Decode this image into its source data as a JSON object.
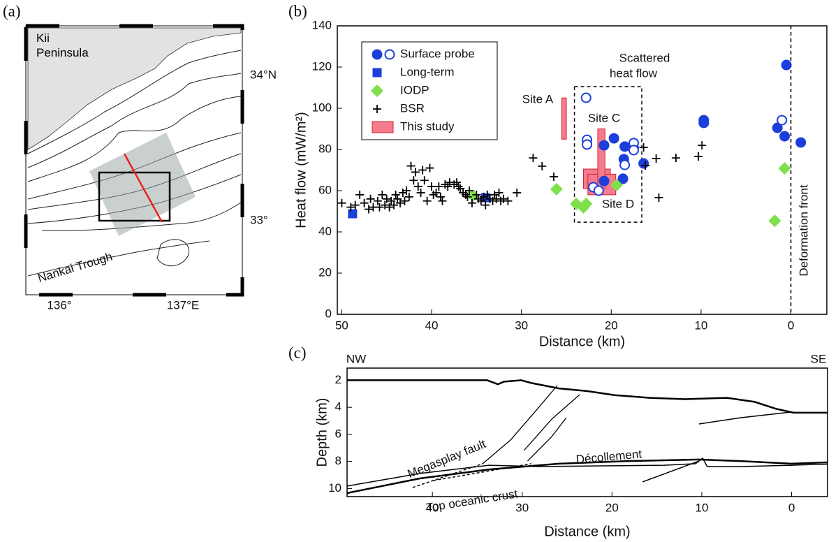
{
  "map": {
    "panel_label": "(a)",
    "region": "Kii Peninsula",
    "lat_north": "34°N",
    "lat_south": "33°",
    "trough": "Nankai Trough",
    "lon_west": "136°",
    "lon_east": "137°E"
  },
  "chart_data": [
    {
      "type": "scatter",
      "panel_label": "(b)",
      "xlabel": "Distance (km)",
      "ylabel": "Heat flow (mW/m²)",
      "xlim": [
        50.5,
        -4
      ],
      "ylim": [
        0,
        140
      ],
      "xticks": [
        50,
        40,
        30,
        20,
        10,
        0
      ],
      "yticks": [
        0,
        20,
        40,
        60,
        80,
        100,
        120,
        140
      ],
      "legend": "upper left",
      "series": [
        {
          "name": "Surface probe",
          "color": "#1c3fdc",
          "marker": "circle",
          "x": [
            0.5,
            9.7,
            9.7,
            1.5,
            0.7,
            -1.1,
            20.8,
            19.7,
            18.5,
            17.5,
            18.6,
            16.4,
            18.7,
            20.8,
            22.8,
            22.7,
            22.7,
            17.5,
            17.5,
            18.5,
            1.0,
            22.0,
            21.4
          ],
          "values": [
            121,
            94.2,
            92.9,
            90.5,
            86.4,
            83.4,
            82.0,
            85.4,
            81.4,
            80.7,
            75.3,
            73.2,
            65.8,
            64.7,
            105.1,
            84.7,
            82.4,
            83.1,
            79.7,
            72.5,
            94.2,
            61.7,
            60.0
          ],
          "filled": [
            true,
            true,
            true,
            true,
            true,
            true,
            true,
            true,
            true,
            true,
            true,
            true,
            true,
            true,
            false,
            false,
            false,
            false,
            false,
            false,
            false,
            false,
            false
          ]
        },
        {
          "name": "Long-term",
          "color": "#1c3fdc",
          "marker": "square",
          "x": [
            48.8,
            34.0
          ],
          "values": [
            48.8,
            56.6
          ]
        },
        {
          "name": "IODP",
          "color": "#7ee04a",
          "marker": "diamond",
          "x": [
            35.4,
            26.1,
            23.9,
            23.1,
            22.8,
            19.4,
            0.7,
            1.8
          ],
          "values": [
            57.6,
            60.7,
            53.6,
            51.9,
            53.6,
            62.7,
            70.8,
            45.4
          ]
        },
        {
          "name": "BSR",
          "color": "#000000",
          "marker": "cross",
          "x": [
            50,
            49,
            48.5,
            48,
            47.5,
            47,
            46.8,
            46.5,
            46,
            45.8,
            45.5,
            45.2,
            45,
            44.7,
            44.5,
            44.2,
            44,
            43.8,
            43.5,
            43.2,
            43,
            42.8,
            42.5,
            42.3,
            42,
            41.8,
            41.5,
            41.2,
            41,
            40.8,
            40.5,
            40.2,
            40,
            39.8,
            39.5,
            39.2,
            39,
            38.8,
            38.5,
            38.2,
            38,
            37.5,
            37.2,
            37,
            36.8,
            36.5,
            36.2,
            36,
            35.8,
            35.5,
            35,
            34.8,
            34.5,
            34.2,
            34,
            33.8,
            33.5,
            33.2,
            33,
            32.8,
            32.5,
            32.3,
            32,
            31.5,
            30.5,
            28.7,
            27.7,
            26.4,
            16.2,
            16.4,
            15,
            14.7,
            12.8,
            10.3,
            9.9
          ],
          "values": [
            54,
            52,
            53,
            58,
            54,
            51,
            56,
            52,
            55,
            52,
            58,
            53,
            56,
            52,
            55,
            53,
            58,
            56,
            54,
            59,
            55,
            60,
            57,
            72,
            65,
            69,
            62,
            59,
            70,
            65,
            55,
            71,
            62,
            58,
            59,
            62,
            57,
            55,
            63,
            62,
            64,
            63,
            64,
            62,
            61,
            59,
            58,
            57,
            60,
            54,
            58,
            56,
            55,
            57,
            53,
            58,
            56,
            55,
            58,
            56,
            59,
            55,
            56,
            55,
            59,
            75.9,
            71.9,
            66.8,
            72.2,
            81,
            75.6,
            56.6,
            75.9,
            76.6,
            82
          ]
        }
      ],
      "ranges_name": "This study",
      "ranges_color": "#f47c8c",
      "ranges": [
        {
          "x": [
            25.5,
            25.0
          ],
          "y": [
            85,
            105
          ]
        },
        {
          "x": [
            23.1,
            20.1
          ],
          "y": [
            61,
            70.5
          ]
        },
        {
          "x": [
            22.6,
            19.5
          ],
          "y": [
            58,
            68
          ]
        },
        {
          "x": [
            21.5,
            20.7
          ],
          "y": [
            61,
            90
          ]
        }
      ],
      "site_labels": [
        "Site A",
        "Site C",
        "Site D"
      ],
      "scattered_label": [
        "Scattered",
        "heat flow"
      ],
      "scattered_box": {
        "x": [
          24.1,
          16.6
        ],
        "y": [
          44.7,
          110.5
        ]
      },
      "front_label": "Deformation front",
      "front_x": 0
    },
    {
      "type": "line",
      "panel_label": "(c)",
      "xlabel": "Distance (km)",
      "ylabel": "Depth (km)",
      "xlim": [
        49.5,
        -4
      ],
      "ylim": [
        1.1,
        10.6
      ],
      "y_inverted": true,
      "xticks": [
        40,
        30,
        20,
        10,
        0
      ],
      "yticks": [
        2,
        4,
        6,
        8,
        10
      ],
      "left_label": "NW",
      "right_label": "SE",
      "annotations": [
        "Megasplay fault",
        "Décollement",
        "Top oceanic crust"
      ],
      "lines": [
        {
          "x": [
            49.5,
            33.9,
            32.7,
            32.0,
            30.1,
            29.0,
            25.9,
            22.8,
            19.7,
            15.8,
            11.9,
            7.2,
            4.1,
            1.8,
            -0.2,
            -4
          ],
          "y": [
            2.0,
            2.0,
            2.3,
            2.1,
            2.0,
            2.2,
            2.6,
            2.8,
            3.1,
            3.3,
            3.4,
            3.3,
            3.6,
            4.1,
            4.4,
            4.4
          ],
          "width": 2.5,
          "dashed": false
        },
        {
          "x": [
            49.5,
            41.4,
            33.7,
            25.9,
            18.1,
            10.3,
            5.7,
            0,
            -4
          ],
          "y": [
            10.34,
            9.26,
            8.59,
            8.17,
            7.97,
            7.86,
            7.97,
            8.17,
            8.07
          ],
          "width": 2.5,
          "dashed": false
        },
        {
          "x": [
            49.5,
            41.4,
            33.7,
            28.2,
            21.2,
            14.2,
            10.7,
            9.9,
            9.4,
            5.7,
            0,
            -4
          ],
          "y": [
            9.82,
            8.89,
            8.28,
            8.38,
            8.33,
            8.28,
            8.17,
            7.76,
            8.38,
            8.38,
            8.28,
            8.2
          ],
          "width": 1.5,
          "dashed": false
        },
        {
          "x": [
            10.3,
            16.6
          ],
          "y": [
            7.97,
            9.51
          ],
          "width": 1.5,
          "dashed": false
        },
        {
          "x": [
            10.3,
            5.7,
            0
          ],
          "y": [
            5.23,
            4.77,
            4.35
          ],
          "width": 1.5,
          "dashed": false
        },
        {
          "x": [
            34.4,
            31.3,
            28.6,
            26.1
          ],
          "y": [
            8.17,
            6.42,
            4.35,
            2.39
          ],
          "width": 1.3,
          "dashed": false
        },
        {
          "x": [
            42.2,
            34.4
          ],
          "y": [
            9.93,
            8.17
          ],
          "width": 1.5,
          "dashed": true
        },
        {
          "x": [
            39.9,
            29.0
          ],
          "y": [
            9.41,
            8.17
          ],
          "width": 1.5,
          "dashed": true
        },
        {
          "x": [
            29.8,
            26.7,
            23.6
          ],
          "y": [
            7.19,
            4.87,
            3.06
          ],
          "width": 1.3,
          "dashed": false
        },
        {
          "x": [
            29.4,
            26.7,
            25.1
          ],
          "y": [
            7.97,
            6.16,
            4.77
          ],
          "width": 1.3,
          "dashed": false
        }
      ]
    }
  ]
}
